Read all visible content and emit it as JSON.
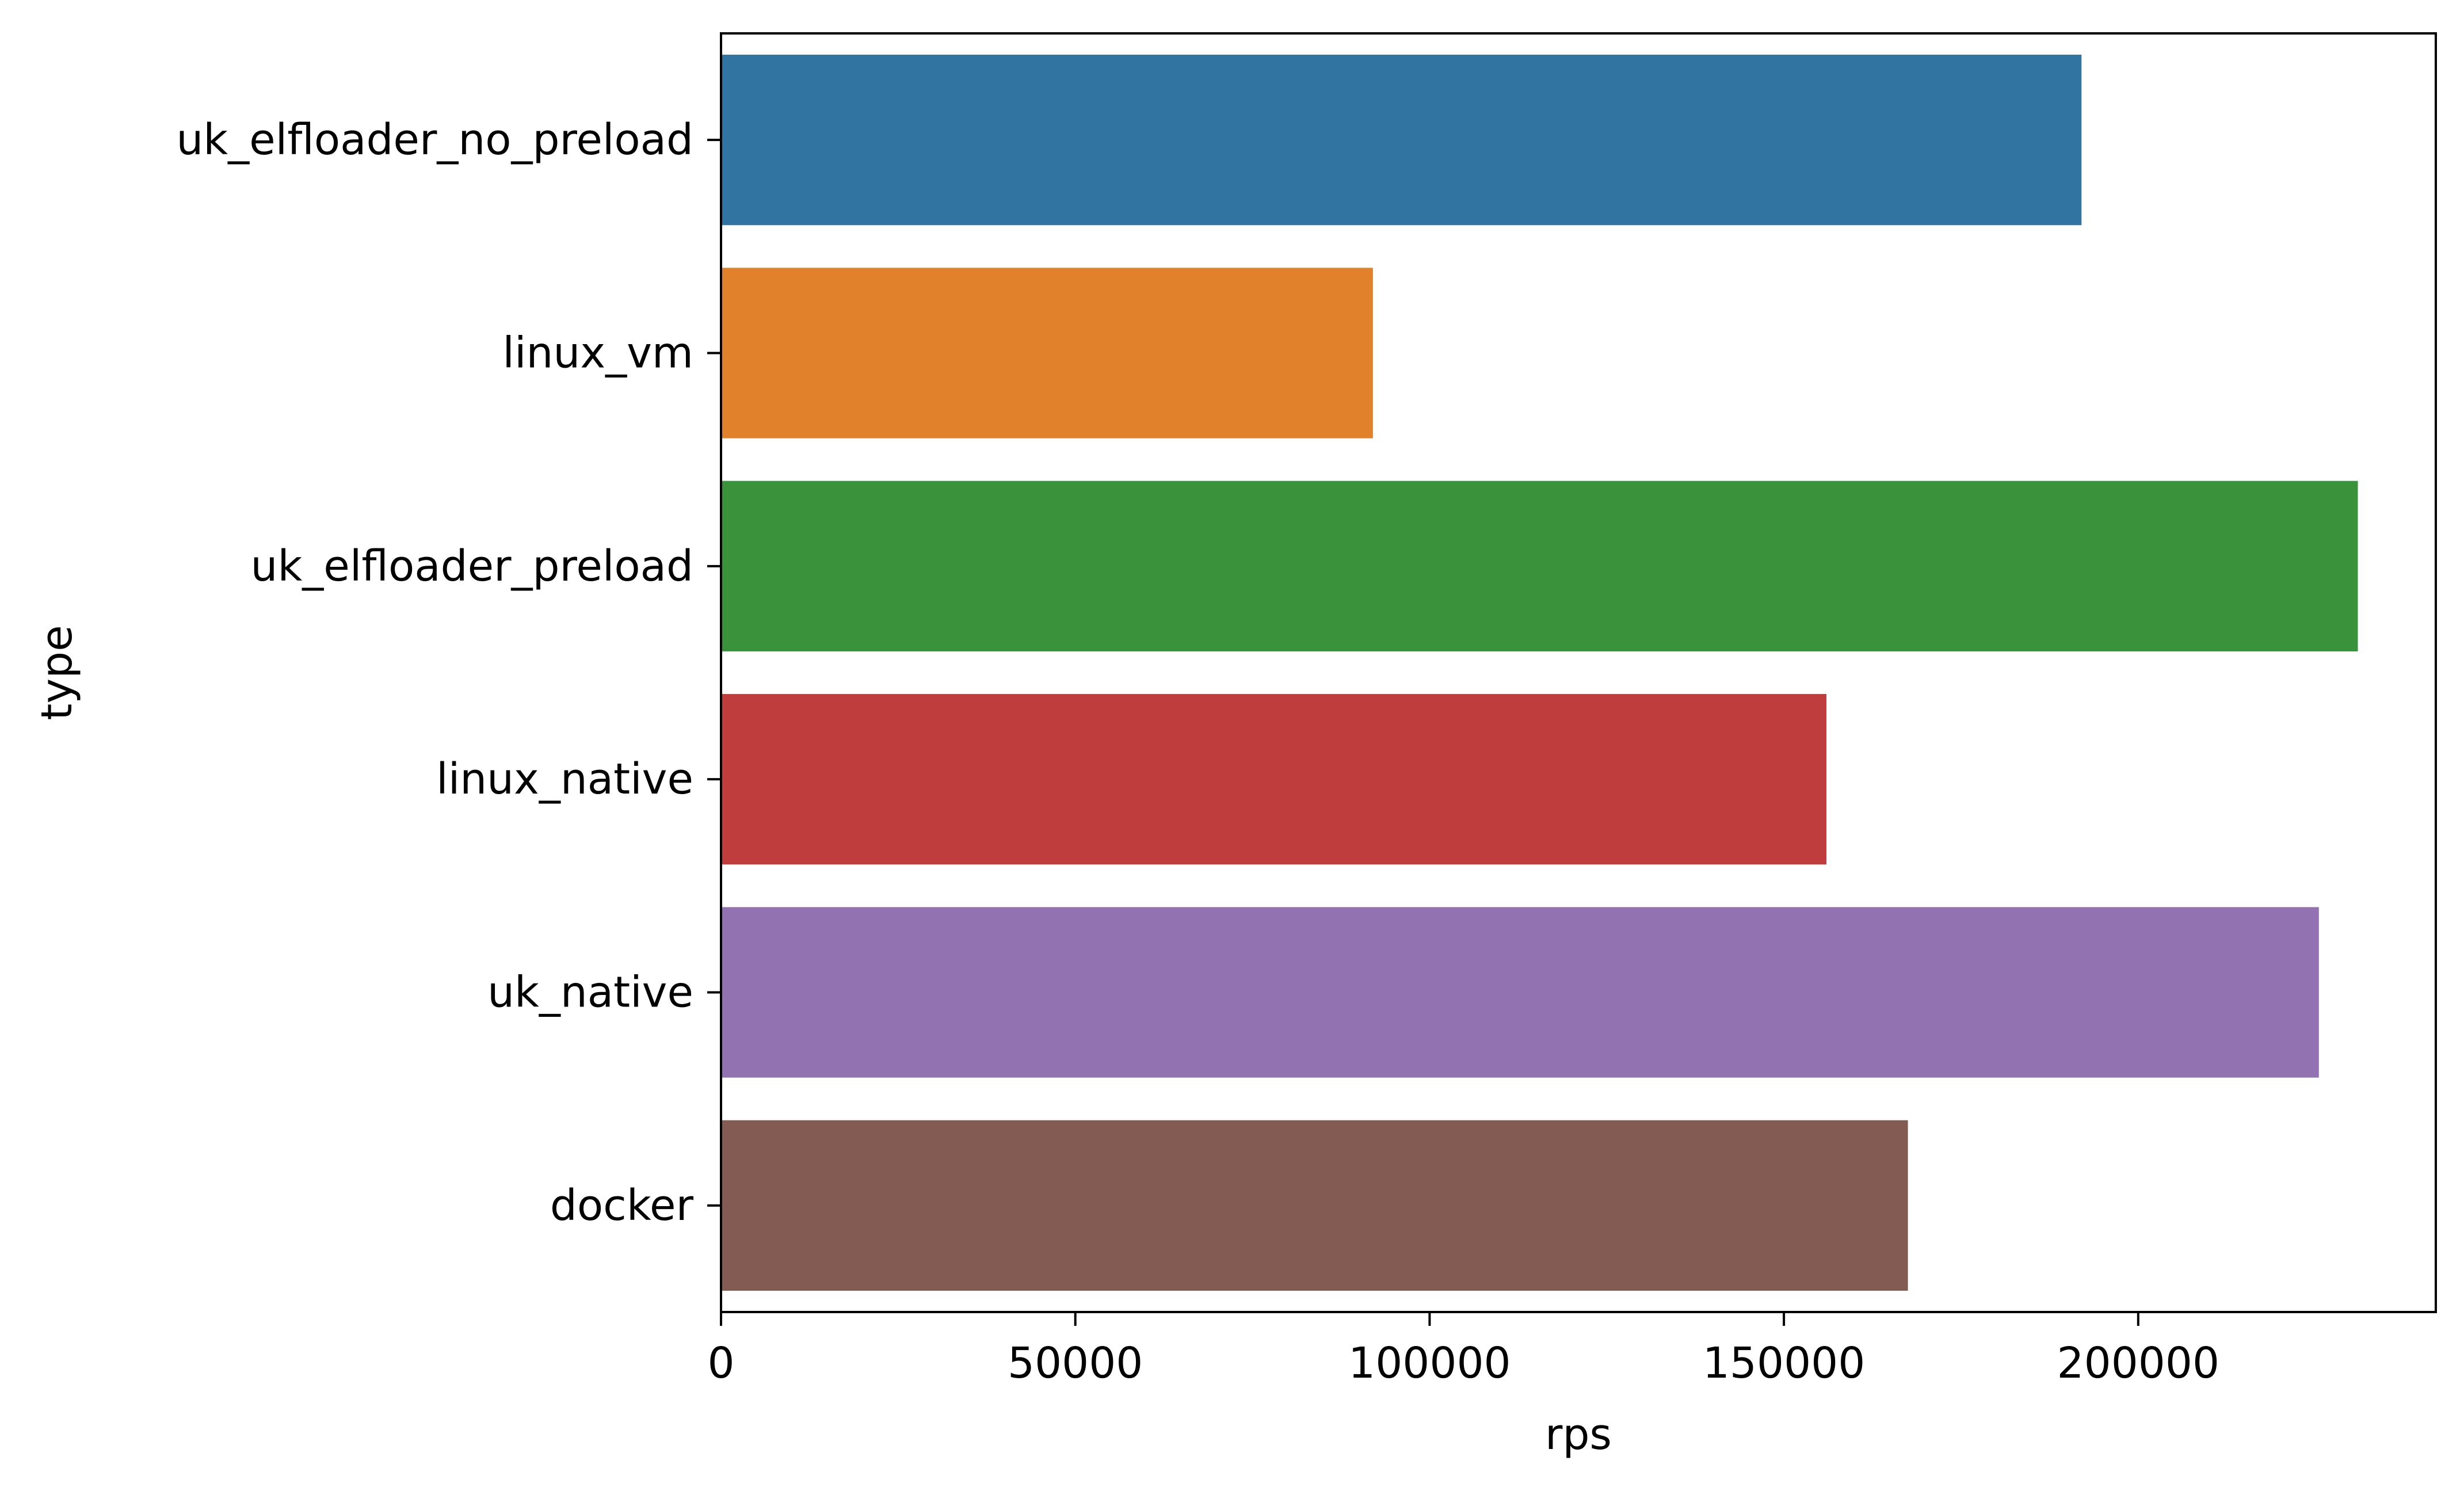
{
  "chart_data": {
    "type": "bar",
    "orientation": "horizontal",
    "title": "",
    "xlabel": "rps",
    "ylabel": "type",
    "categories": [
      "uk_elfloader_no_preload",
      "linux_vm",
      "uk_elfloader_preload",
      "linux_native",
      "uk_native",
      "docker"
    ],
    "values": [
      192000,
      92000,
      231000,
      156000,
      225500,
      167500
    ],
    "colors": [
      "#3274a1",
      "#e1812c",
      "#3a923a",
      "#c03d3e",
      "#9372b2",
      "#845b53"
    ],
    "xlim": [
      0,
      242000
    ],
    "xticks": [
      0,
      50000,
      100000,
      150000,
      200000
    ],
    "xtick_labels": [
      "0",
      "50000",
      "100000",
      "150000",
      "200000"
    ],
    "grid": false,
    "legend": "none"
  }
}
